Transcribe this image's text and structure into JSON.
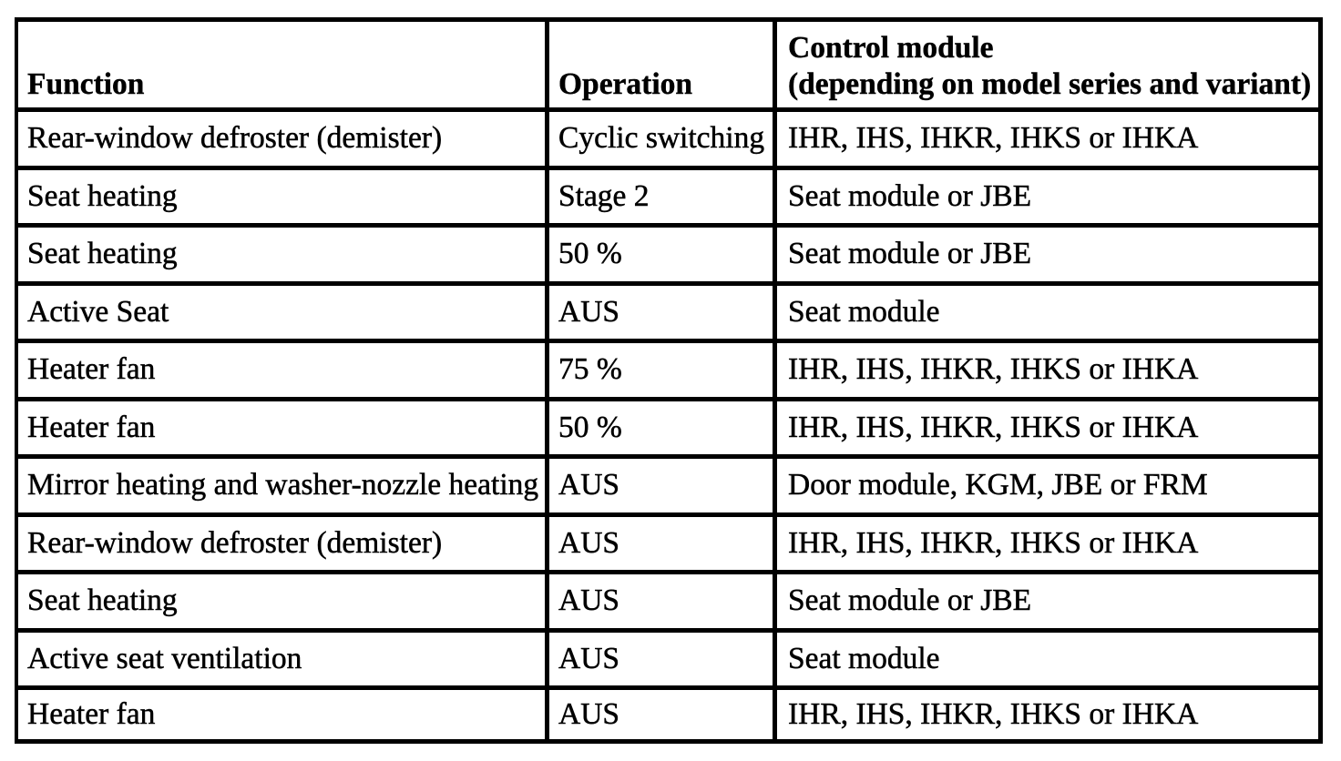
{
  "table": {
    "columns": {
      "function": "Function",
      "operation": "Operation",
      "control_module_line1": "Control module",
      "control_module_line2": "(depending on model series and variant)"
    },
    "rows": [
      {
        "function": "Rear-window defroster (demister)",
        "operation": "Cyclic switching",
        "control_module": "IHR, IHS, IHKR, IHKS or IHKA"
      },
      {
        "function": "Seat heating",
        "operation": "Stage 2",
        "control_module": "Seat module or JBE"
      },
      {
        "function": "Seat heating",
        "operation": "50 %",
        "control_module": "Seat module or JBE"
      },
      {
        "function": "Active Seat",
        "operation": "AUS",
        "control_module": "Seat module"
      },
      {
        "function": "Heater fan",
        "operation": "75 %",
        "control_module": "IHR, IHS, IHKR, IHKS or IHKA"
      },
      {
        "function": "Heater fan",
        "operation": "50 %",
        "control_module": "IHR, IHS, IHKR, IHKS or IHKA"
      },
      {
        "function": "Mirror heating and washer-nozzle heating",
        "operation": "AUS",
        "control_module": "Door module, KGM, JBE or FRM"
      },
      {
        "function": "Rear-window defroster (demister)",
        "operation": "AUS",
        "control_module": "IHR, IHS, IHKR, IHKS or IHKA"
      },
      {
        "function": "Seat heating",
        "operation": "AUS",
        "control_module": "Seat module or JBE"
      },
      {
        "function": "Active seat ventilation",
        "operation": "AUS",
        "control_module": "Seat module"
      },
      {
        "function": "Heater fan",
        "operation": "AUS",
        "control_module": "IHR, IHS, IHKR, IHKS or IHKA"
      }
    ]
  }
}
